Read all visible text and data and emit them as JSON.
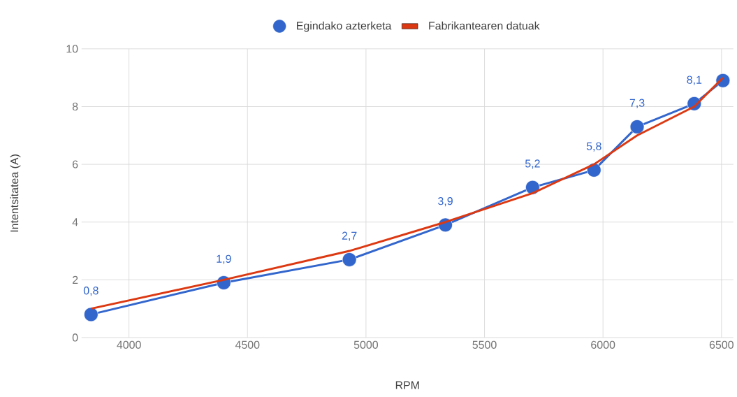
{
  "chart_data": {
    "type": "line",
    "xlabel": "RPM",
    "ylabel": "Intentsitatea (A)",
    "xlim": [
      3800,
      6550
    ],
    "ylim": [
      0,
      10
    ],
    "xticks": [
      4000,
      4500,
      5000,
      5500,
      6000,
      6500
    ],
    "yticks": [
      0,
      2,
      4,
      6,
      8,
      10
    ],
    "grid": true,
    "legend": "top",
    "series": [
      {
        "name": "Egindako azterketa",
        "color": "#3366cc",
        "marker": "circle",
        "x": [
          3840,
          4400,
          4930,
          5335,
          5703,
          5962,
          6144,
          6385,
          6506
        ],
        "values": [
          0.8,
          1.9,
          2.7,
          3.9,
          5.2,
          5.8,
          7.3,
          8.1,
          8.9
        ],
        "value_labels": [
          "0,8",
          "1,9",
          "2,7",
          "3,9",
          "5,2",
          "5,8",
          "7,3",
          "8,1",
          null
        ]
      },
      {
        "name": "Fabrikantearen datuak",
        "color": "#dc3912",
        "marker": "none",
        "x": [
          3840,
          4400,
          4930,
          5335,
          5703,
          5962,
          6144,
          6385,
          6506
        ],
        "values": [
          1,
          2,
          3,
          4,
          5,
          6,
          7,
          8,
          9
        ]
      }
    ]
  }
}
